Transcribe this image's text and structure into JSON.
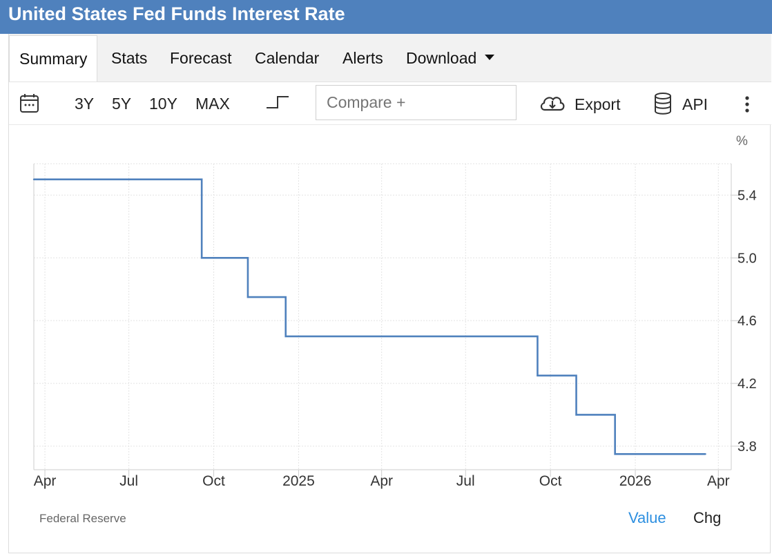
{
  "header": {
    "title": "United States Fed Funds Interest Rate"
  },
  "tabs": [
    {
      "label": "Summary",
      "active": true
    },
    {
      "label": "Stats"
    },
    {
      "label": "Forecast"
    },
    {
      "label": "Calendar"
    },
    {
      "label": "Alerts"
    },
    {
      "label": "Download",
      "has_dropdown": true
    }
  ],
  "toolbar": {
    "calendar_icon": "calendar-icon",
    "ranges": [
      "3Y",
      "5Y",
      "10Y",
      "MAX"
    ],
    "chart_type_icon": "step-line-icon",
    "compare_placeholder": "Compare +",
    "export_label": "Export",
    "export_icon": "cloud-download-icon",
    "api_label": "API",
    "api_icon": "database-icon",
    "more_icon": "more-vertical-icon"
  },
  "footer": {
    "source": "Federal Reserve",
    "value_label": "Value",
    "chg_label": "Chg"
  },
  "colors": {
    "accent": "#4f81bd",
    "line": "#4f81bd",
    "active_mode": "#2d8fe0"
  },
  "chart_data": {
    "type": "line",
    "step": true,
    "title": "United States Fed Funds Interest Rate",
    "unit": "%",
    "y_axis_position": "right",
    "ylim": [
      3.65,
      5.6
    ],
    "yticks": [
      3.8,
      4.2,
      4.6,
      5.0,
      5.4
    ],
    "ytick_labels": [
      "3.8",
      "4.2",
      "4.6",
      "5.0",
      "5.4"
    ],
    "xlim": [
      "2024-03-20",
      "2026-04-15"
    ],
    "xticks": [
      {
        "date": "2024-04-01",
        "label": "Apr"
      },
      {
        "date": "2024-07-01",
        "label": "Jul"
      },
      {
        "date": "2024-10-01",
        "label": "Oct"
      },
      {
        "date": "2025-01-01",
        "label": "2025"
      },
      {
        "date": "2025-04-01",
        "label": "Apr"
      },
      {
        "date": "2025-07-01",
        "label": "Jul"
      },
      {
        "date": "2025-10-01",
        "label": "Oct"
      },
      {
        "date": "2026-01-01",
        "label": "2026"
      },
      {
        "date": "2026-04-01",
        "label": "Apr"
      }
    ],
    "grid": true,
    "series": [
      {
        "name": "Fed Funds Rate",
        "points": [
          {
            "date": "2024-03-20",
            "value": 5.5
          },
          {
            "date": "2024-09-18",
            "value": 5.0
          },
          {
            "date": "2024-11-07",
            "value": 4.75
          },
          {
            "date": "2024-12-18",
            "value": 4.5
          },
          {
            "date": "2025-09-17",
            "value": 4.25
          },
          {
            "date": "2025-10-29",
            "value": 4.0
          },
          {
            "date": "2025-12-10",
            "value": 3.75
          },
          {
            "date": "2026-03-18",
            "value": 3.75
          }
        ]
      }
    ]
  }
}
